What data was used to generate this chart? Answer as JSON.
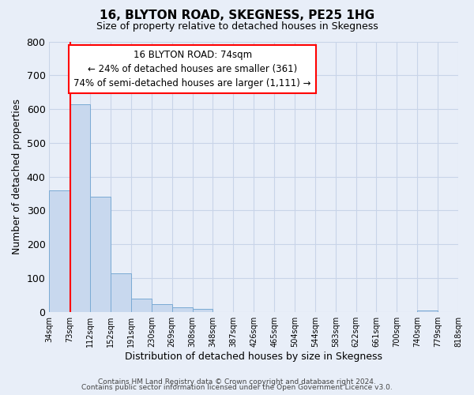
{
  "title": "16, BLYTON ROAD, SKEGNESS, PE25 1HG",
  "subtitle": "Size of property relative to detached houses in Skegness",
  "xlabel": "Distribution of detached houses by size in Skegness",
  "ylabel": "Number of detached properties",
  "bar_values": [
    360,
    613,
    340,
    113,
    40,
    22,
    14,
    8,
    0,
    0,
    0,
    0,
    0,
    0,
    0,
    0,
    0,
    0,
    5,
    0
  ],
  "bin_labels": [
    "34sqm",
    "73sqm",
    "112sqm",
    "152sqm",
    "191sqm",
    "230sqm",
    "269sqm",
    "308sqm",
    "348sqm",
    "387sqm",
    "426sqm",
    "465sqm",
    "504sqm",
    "544sqm",
    "583sqm",
    "622sqm",
    "661sqm",
    "700sqm",
    "740sqm",
    "779sqm",
    "818sqm"
  ],
  "bar_color": "#c8d8ee",
  "bar_edge_color": "#7aaad4",
  "property_line_color": "red",
  "ylim": [
    0,
    800
  ],
  "yticks": [
    0,
    100,
    200,
    300,
    400,
    500,
    600,
    700,
    800
  ],
  "grid_color": "#c8d4e8",
  "bg_color": "#e8eef8",
  "annotation_line1": "16 BLYTON ROAD: 74sqm",
  "annotation_line2": "← 24% of detached houses are smaller (361)",
  "annotation_line3": "74% of semi-detached houses are larger (1,111) →",
  "annotation_box_color": "white",
  "annotation_box_edge": "red",
  "footer1": "Contains HM Land Registry data © Crown copyright and database right 2024.",
  "footer2": "Contains public sector information licensed under the Open Government Licence v3.0."
}
